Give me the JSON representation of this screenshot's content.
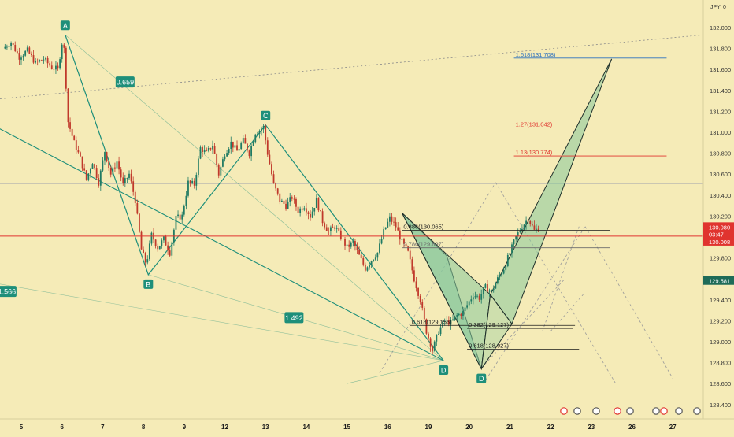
{
  "chart_data": {
    "type": "candlestick",
    "currency_tag": "JPY",
    "y_ticks": [
      132.0,
      131.8,
      131.6,
      131.4,
      131.2,
      131.0,
      130.8,
      130.6,
      130.4,
      130.2,
      130.0,
      129.8,
      129.6,
      129.4,
      129.2,
      129.0,
      128.8,
      128.6,
      128.4
    ],
    "x_ticks": [
      {
        "label": "5",
        "pos": 0.0
      },
      {
        "label": "6",
        "pos": 1.0
      },
      {
        "label": "7",
        "pos": 2.0
      },
      {
        "label": "8",
        "pos": 3.0
      },
      {
        "label": "9",
        "pos": 4.0
      },
      {
        "label": "12",
        "pos": 5.0
      },
      {
        "label": "13",
        "pos": 6.0
      },
      {
        "label": "14",
        "pos": 7.0
      },
      {
        "label": "15",
        "pos": 8.0
      },
      {
        "label": "16",
        "pos": 9.0
      },
      {
        "label": "19",
        "pos": 10.0
      },
      {
        "label": "20",
        "pos": 11.0
      },
      {
        "label": "21",
        "pos": 12.0
      },
      {
        "label": "22",
        "pos": 13.0
      },
      {
        "label": "23",
        "pos": 14.0
      },
      {
        "label": "26",
        "pos": 15.0
      },
      {
        "label": "27",
        "pos": 16.0
      }
    ],
    "price_path": [
      [
        -0.4,
        131.8
      ],
      [
        -0.2,
        131.86
      ],
      [
        0.0,
        131.72
      ],
      [
        0.2,
        131.78
      ],
      [
        0.4,
        131.66
      ],
      [
        0.6,
        131.7
      ],
      [
        0.8,
        131.62
      ],
      [
        0.95,
        131.6
      ],
      [
        1.08,
        131.93
      ],
      [
        1.2,
        131.1
      ],
      [
        1.35,
        130.9
      ],
      [
        1.5,
        130.75
      ],
      [
        1.65,
        130.55
      ],
      [
        1.8,
        130.72
      ],
      [
        1.95,
        130.52
      ],
      [
        2.1,
        130.82
      ],
      [
        2.25,
        130.6
      ],
      [
        2.4,
        130.72
      ],
      [
        2.55,
        130.5
      ],
      [
        2.7,
        130.6
      ],
      [
        2.85,
        130.35
      ],
      [
        3.0,
        129.88
      ],
      [
        3.12,
        129.74
      ],
      [
        3.25,
        130.02
      ],
      [
        3.4,
        129.9
      ],
      [
        3.55,
        129.98
      ],
      [
        3.7,
        129.85
      ],
      [
        3.85,
        130.18
      ],
      [
        4.0,
        130.2
      ],
      [
        4.15,
        130.52
      ],
      [
        4.3,
        130.5
      ],
      [
        4.45,
        130.85
      ],
      [
        4.6,
        130.8
      ],
      [
        4.75,
        130.88
      ],
      [
        4.9,
        130.6
      ],
      [
        5.05,
        130.8
      ],
      [
        5.2,
        130.9
      ],
      [
        5.35,
        130.82
      ],
      [
        5.5,
        130.92
      ],
      [
        5.65,
        130.8
      ],
      [
        5.8,
        131.0
      ],
      [
        5.92,
        131.02
      ],
      [
        6.0,
        131.05
      ],
      [
        6.1,
        130.8
      ],
      [
        6.25,
        130.5
      ],
      [
        6.4,
        130.35
      ],
      [
        6.55,
        130.3
      ],
      [
        6.7,
        130.38
      ],
      [
        6.85,
        130.25
      ],
      [
        7.0,
        130.3
      ],
      [
        7.15,
        130.2
      ],
      [
        7.3,
        130.35
      ],
      [
        7.45,
        130.15
      ],
      [
        7.6,
        130.05
      ],
      [
        7.75,
        130.1
      ],
      [
        7.9,
        130.0
      ],
      [
        8.05,
        129.9
      ],
      [
        8.2,
        129.95
      ],
      [
        8.35,
        129.82
      ],
      [
        8.5,
        129.7
      ],
      [
        8.65,
        129.78
      ],
      [
        8.8,
        129.85
      ],
      [
        8.95,
        130.05
      ],
      [
        9.1,
        130.18
      ],
      [
        9.25,
        130.1
      ],
      [
        9.4,
        129.95
      ],
      [
        9.55,
        129.85
      ],
      [
        9.7,
        129.6
      ],
      [
        9.85,
        129.4
      ],
      [
        10.0,
        129.1
      ],
      [
        10.15,
        128.92
      ],
      [
        10.3,
        129.1
      ],
      [
        10.45,
        129.2
      ],
      [
        10.6,
        129.18
      ],
      [
        10.75,
        129.25
      ],
      [
        10.9,
        129.28
      ],
      [
        11.0,
        129.35
      ],
      [
        11.15,
        129.45
      ],
      [
        11.3,
        129.42
      ],
      [
        11.45,
        129.52
      ],
      [
        11.6,
        129.48
      ],
      [
        11.75,
        129.6
      ],
      [
        11.9,
        129.7
      ],
      [
        12.05,
        129.85
      ],
      [
        12.2,
        130.0
      ],
      [
        12.35,
        130.1
      ],
      [
        12.5,
        130.18
      ],
      [
        12.65,
        130.06
      ],
      [
        12.75,
        130.08
      ]
    ],
    "fib_levels": [
      {
        "label": "1.618(131.708)",
        "value": 131.708,
        "color": "#2a6fbe",
        "x_start": 12.1,
        "x_end": 15.85
      },
      {
        "label": "1.27(131.042)",
        "value": 131.042,
        "color": "#e0342f",
        "x_start": 12.1,
        "x_end": 15.85
      },
      {
        "label": "1.13(130.774)",
        "value": 130.774,
        "color": "#e0342f",
        "x_start": 12.1,
        "x_end": 15.85
      },
      {
        "label": "0.886(130.065)",
        "value": 130.065,
        "color": "#1a1a1a",
        "x_start": 9.35,
        "x_end": 14.45
      },
      {
        "label": "0.786(129.897)",
        "value": 129.897,
        "color": "#6b6b6b",
        "x_start": 9.35,
        "x_end": 14.45
      },
      {
        "label": "0.618(129.156)",
        "value": 129.156,
        "color": "#1a1a1a",
        "x_start": 9.55,
        "x_end": 13.6
      },
      {
        "label": "0.382(129.127)",
        "value": 129.127,
        "color": "#1a1a1a",
        "x_start": 10.95,
        "x_end": 13.55
      },
      {
        "label": "0.618(128.927)",
        "value": 128.927,
        "color": "#1a1a1a",
        "x_start": 10.95,
        "x_end": 13.7
      }
    ],
    "points": [
      {
        "label": "A",
        "x": 1.08,
        "y": 131.93
      },
      {
        "label": "B",
        "x": 3.12,
        "y": 129.64
      },
      {
        "label": "C",
        "x": 6.0,
        "y": 131.07
      },
      {
        "label": "D",
        "x": 10.37,
        "y": 128.82
      },
      {
        "label": "D",
        "x": 11.3,
        "y": 128.74
      }
    ],
    "ratios": [
      {
        "label": "0.659",
        "x": 2.55,
        "y": 131.48
      },
      {
        "label": "1.566",
        "x": -0.35,
        "y": 129.48
      },
      {
        "label": "1.492",
        "x": 6.7,
        "y": 129.23
      }
    ],
    "price_tags": [
      {
        "label": "130.080",
        "value": 130.08,
        "color": "#e0342f"
      },
      {
        "label": "03:47",
        "value": 130.04,
        "color": "#e0342f"
      },
      {
        "label": "130.008",
        "value": 130.008,
        "color": "#e0342f"
      },
      {
        "label": "129.581",
        "value": 129.581,
        "color": "#1e6b58"
      }
    ],
    "axis_top_partial": "132.0",
    "ylim": [
      128.25,
      132.25
    ],
    "current_price": 130.008
  }
}
